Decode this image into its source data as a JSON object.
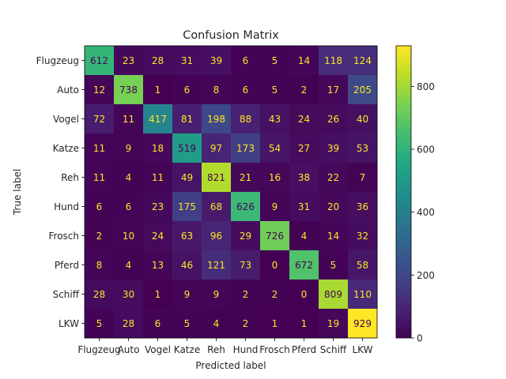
{
  "chart_data": {
    "type": "heatmap",
    "title": "Confusion Matrix",
    "xlabel": "Predicted label",
    "ylabel": "True label",
    "x_categories": [
      "Flugzeug",
      "Auto",
      "Vogel",
      "Katze",
      "Reh",
      "Hund",
      "Frosch",
      "Pferd",
      "Schiff",
      "LKW"
    ],
    "y_categories": [
      "Flugzeug",
      "Auto",
      "Vogel",
      "Katze",
      "Reh",
      "Hund",
      "Frosch",
      "Pferd",
      "Schiff",
      "LKW"
    ],
    "values": [
      [
        612,
        23,
        28,
        31,
        39,
        6,
        5,
        14,
        118,
        124
      ],
      [
        12,
        738,
        1,
        6,
        8,
        6,
        5,
        2,
        17,
        205
      ],
      [
        72,
        11,
        417,
        81,
        198,
        88,
        43,
        24,
        26,
        40
      ],
      [
        11,
        9,
        18,
        519,
        97,
        173,
        54,
        27,
        39,
        53
      ],
      [
        11,
        4,
        11,
        49,
        821,
        21,
        16,
        38,
        22,
        7
      ],
      [
        6,
        6,
        23,
        175,
        68,
        626,
        9,
        31,
        20,
        36
      ],
      [
        2,
        10,
        24,
        63,
        96,
        29,
        726,
        4,
        14,
        32
      ],
      [
        8,
        4,
        13,
        46,
        121,
        73,
        0,
        672,
        5,
        58
      ],
      [
        28,
        30,
        1,
        9,
        9,
        2,
        2,
        0,
        809,
        110
      ],
      [
        5,
        28,
        6,
        5,
        4,
        2,
        1,
        1,
        19,
        929
      ]
    ],
    "colormap": "viridis",
    "color_range": [
      0,
      929
    ],
    "colorbar_ticks": [
      0,
      200,
      400,
      600,
      800
    ],
    "text_colors": {
      "on_dark": "#fde725",
      "on_light": "#440154"
    }
  }
}
